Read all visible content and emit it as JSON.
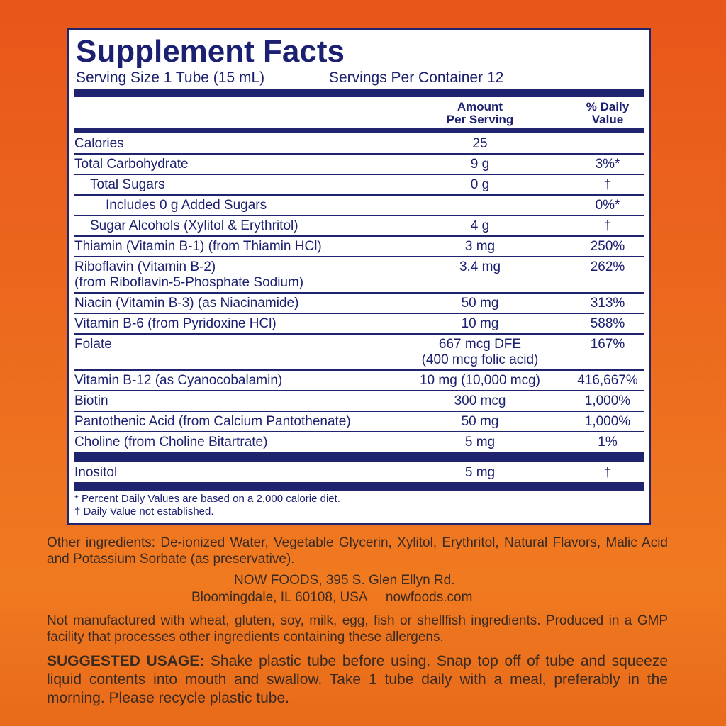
{
  "panel": {
    "title": "Supplement Facts",
    "serving_size": "Serving Size 1 Tube (15 mL)",
    "servings_per_container": "Servings Per Container 12",
    "col_amount": [
      "Amount",
      "Per Serving"
    ],
    "col_dv": [
      "% Daily",
      "Value"
    ],
    "rows": [
      {
        "name": [
          "Calories"
        ],
        "amount": [
          "25"
        ]
      },
      {
        "name": [
          "Total Carbohydrate"
        ],
        "amount": [
          "9 g"
        ],
        "dv": "3%*"
      },
      {
        "name": [
          "Total Sugars"
        ],
        "amount": [
          "0 g"
        ],
        "dv": "†",
        "indent": 1
      },
      {
        "name": [
          "Includes 0 g Added Sugars"
        ],
        "dv": "0%*",
        "indent": 2
      },
      {
        "name": [
          "Sugar Alcohols (Xylitol & Erythritol)"
        ],
        "amount": [
          "4 g"
        ],
        "dv": "†",
        "indent": 1
      },
      {
        "name": [
          "Thiamin (Vitamin B-1) (from Thiamin HCl)"
        ],
        "amount": [
          "3 mg"
        ],
        "dv": "250%"
      },
      {
        "name": [
          "Riboflavin (Vitamin B-2)",
          "(from Riboflavin-5-Phosphate Sodium)"
        ],
        "amount": [
          "3.4 mg"
        ],
        "dv": "262%"
      },
      {
        "name": [
          "Niacin (Vitamin B-3) (as Niacinamide)"
        ],
        "amount": [
          "50 mg"
        ],
        "dv": "313%"
      },
      {
        "name": [
          "Vitamin B-6 (from Pyridoxine HCl)"
        ],
        "amount": [
          "10 mg"
        ],
        "dv": "588%"
      },
      {
        "name": [
          "Folate"
        ],
        "amount": [
          "667 mcg DFE",
          "(400 mcg folic acid)"
        ],
        "dv": "167%"
      },
      {
        "name": [
          "Vitamin B-12 (as Cyanocobalamin)"
        ],
        "amount": [
          "10 mg (10,000 mcg)"
        ],
        "dv": "416,667%"
      },
      {
        "name": [
          "Biotin"
        ],
        "amount": [
          "300 mcg"
        ],
        "dv": "1,000%"
      },
      {
        "name": [
          "Pantothenic Acid (from Calcium Pantothenate)"
        ],
        "amount": [
          "50 mg"
        ],
        "dv": "1,000%"
      },
      {
        "name": [
          "Choline (from Choline Bitartrate)"
        ],
        "amount": [
          "5 mg"
        ],
        "dv": "1%"
      },
      {
        "name": [
          "Inositol"
        ],
        "amount": [
          "5 mg"
        ],
        "dv": "†",
        "thick_rule_before": true
      }
    ],
    "footnotes": [
      "* Percent Daily Values are based on a 2,000 calorie diet.",
      "† Daily Value not established."
    ]
  },
  "other_ingredients": "Other ingredients: De-ionized Water, Vegetable Glycerin, Xylitol, Erythritol, Natural Flavors, Malic Acid and Potassium Sorbate (as preservative).",
  "address": [
    "NOW FOODS, 395 S. Glen Ellyn Rd.",
    "Bloomingdale, IL 60108, USA     nowfoods.com"
  ],
  "allergens": "Not manufactured with wheat, gluten, soy, milk, egg, fish or shellfish ingredients. Produced in a GMP facility that processes other ingredients containing these allergens.",
  "usage": {
    "label": "SUGGESTED USAGE:",
    "text": " Shake plastic tube before using. Snap top off of tube and squeeze liquid contents into mouth and swallow. Take 1 tube daily with a meal, preferably in the morning. Please recycle plastic tube."
  }
}
